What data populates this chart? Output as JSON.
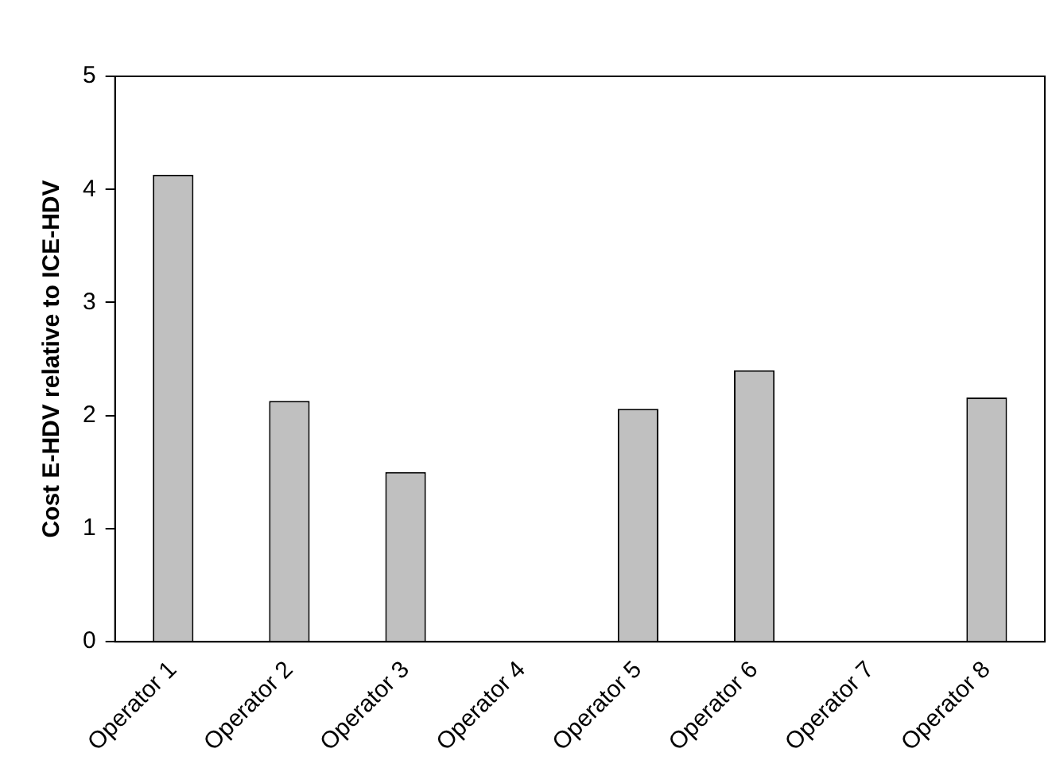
{
  "chart_data": {
    "type": "bar",
    "ylabel": "Cost E-HDV relative to ICE-HDV",
    "categories": [
      "Operator 1",
      "Operator 2",
      "Operator 3",
      "Operator 4",
      "Operator 5",
      "Operator 6",
      "Operator 7",
      "Operator 8"
    ],
    "values": [
      4.13,
      2.13,
      1.5,
      0,
      2.06,
      2.4,
      0,
      2.16
    ],
    "color": "#c0c0c0",
    "ylim": [
      0,
      5
    ],
    "yticks": [
      0,
      1,
      2,
      3,
      4,
      5
    ],
    "grid": false,
    "legend": false
  }
}
